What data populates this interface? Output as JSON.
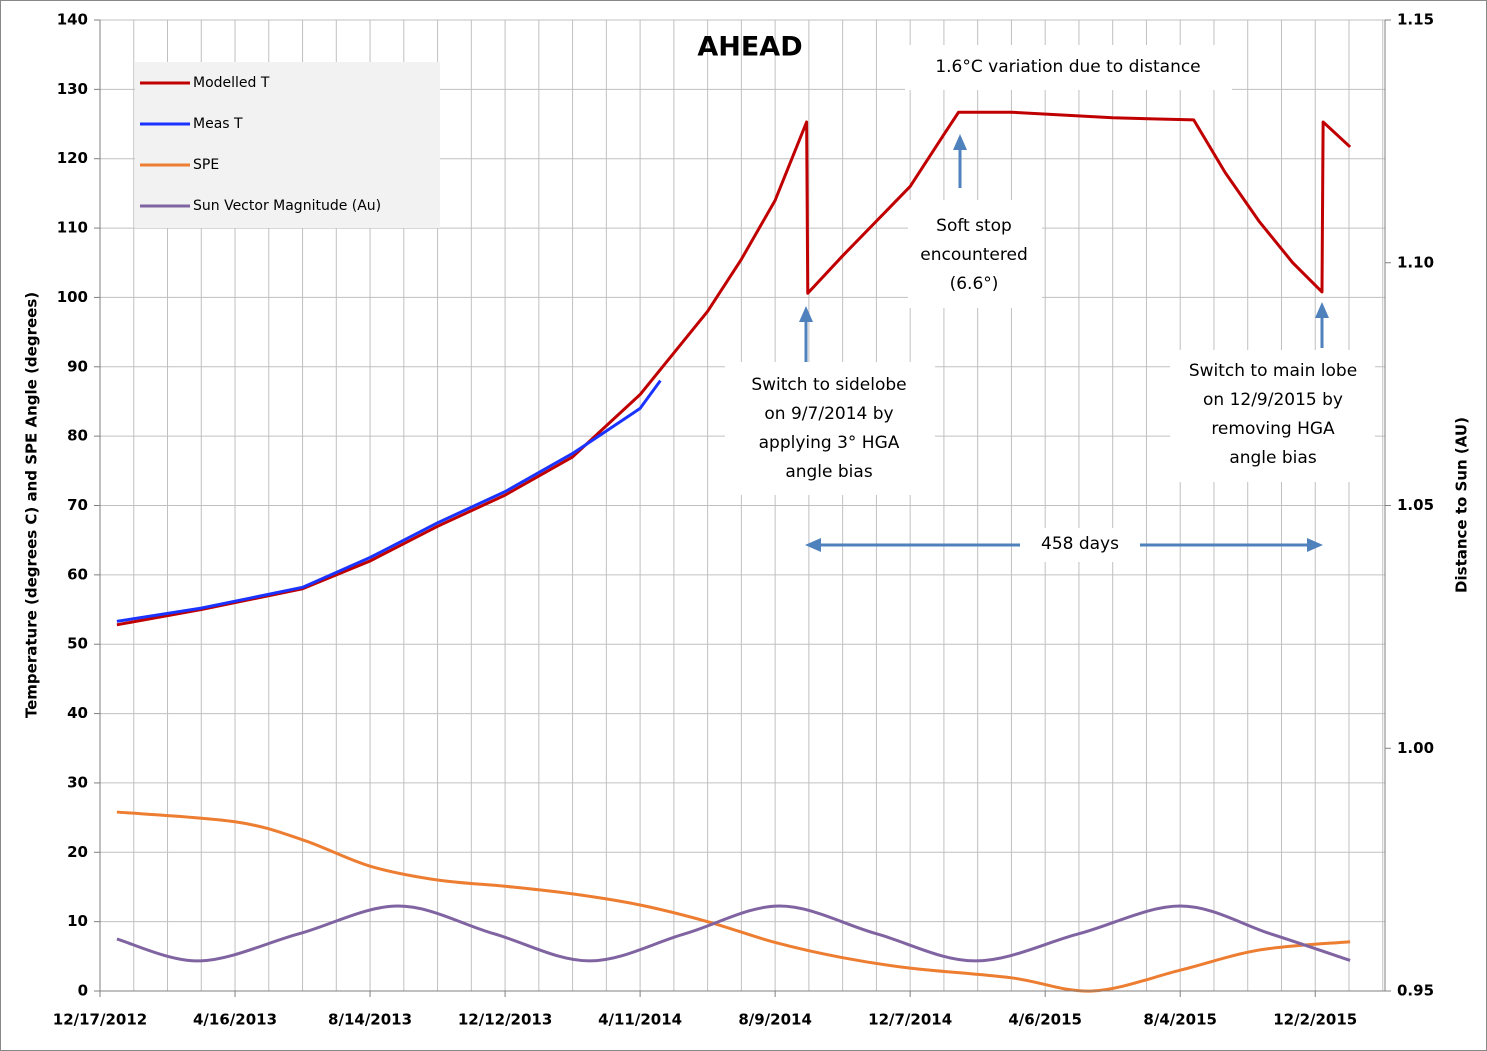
{
  "chart_data": {
    "type": "line",
    "title": "AHEAD",
    "y_label": "Temperature (degrees C) and SPE Angle (degrees)",
    "y2_label": "Distance to Sun (AU)",
    "xlim": [
      "2012-12-17",
      "2016-02-02"
    ],
    "xticks": [
      {
        "value": "2012-12-17",
        "label": "12/17/2012"
      },
      {
        "value": "2013-04-16",
        "label": "4/16/2013"
      },
      {
        "value": "2013-08-14",
        "label": "8/14/2013"
      },
      {
        "value": "2013-12-12",
        "label": "12/12/2013"
      },
      {
        "value": "2014-04-11",
        "label": "4/11/2014"
      },
      {
        "value": "2014-08-09",
        "label": "8/9/2014"
      },
      {
        "value": "2014-12-07",
        "label": "12/7/2014"
      },
      {
        "value": "2015-04-06",
        "label": "4/6/2015"
      },
      {
        "value": "2015-08-04",
        "label": "8/4/2015"
      },
      {
        "value": "2015-12-02",
        "label": "12/2/2015"
      }
    ],
    "xgrid": [
      "2012-12-17",
      "2013-01-16",
      "2013-02-15",
      "2013-03-17",
      "2013-04-16",
      "2013-05-16",
      "2013-06-15",
      "2013-07-15",
      "2013-08-14",
      "2013-09-13",
      "2013-10-13",
      "2013-11-12",
      "2013-12-12",
      "2014-01-11",
      "2014-02-10",
      "2014-03-12",
      "2014-04-11",
      "2014-05-11",
      "2014-06-10",
      "2014-07-10",
      "2014-08-09",
      "2014-09-08",
      "2014-10-08",
      "2014-11-07",
      "2014-12-07",
      "2015-01-06",
      "2015-02-05",
      "2015-03-07",
      "2015-04-06",
      "2015-05-06",
      "2015-06-05",
      "2015-07-05",
      "2015-08-04",
      "2015-09-03",
      "2015-10-03",
      "2015-11-02",
      "2015-12-02",
      "2016-01-01",
      "2016-01-31"
    ],
    "ylim": [
      0,
      140
    ],
    "yticks": [
      0,
      10,
      20,
      30,
      40,
      50,
      60,
      70,
      80,
      90,
      100,
      110,
      120,
      130,
      140
    ],
    "y2lim": [
      0.95,
      1.15
    ],
    "y2ticks": [
      0.95,
      {
        "value": 1.0,
        "label": "1.00"
      },
      1.05,
      {
        "value": 1.1,
        "label": "1.10"
      },
      1.15
    ],
    "grid": true,
    "legend": "upper left",
    "series": [
      {
        "name": "Modelled T",
        "color": "#c00000",
        "x": [
          "2013-01-01",
          "2013-03-17",
          "2013-06-15",
          "2013-08-14",
          "2013-10-13",
          "2013-12-12",
          "2014-02-10",
          "2014-04-11",
          "2014-05-11",
          "2014-06-10",
          "2014-07-10",
          "2014-08-09",
          "2014-09-06",
          "2014-09-07",
          "2014-10-08",
          "2014-11-07",
          "2014-12-07",
          "2015-01-06",
          "2015-01-19",
          "2015-03-07",
          "2015-06-05",
          "2015-08-16",
          "2015-09-13",
          "2015-10-13",
          "2015-11-12",
          "2015-12-08",
          "2015-12-09",
          "2016-01-02"
        ],
        "values": [
          52.8,
          55,
          58,
          62,
          67,
          71.5,
          77,
          86,
          92,
          98,
          105.5,
          114,
          125.3,
          100.6,
          106,
          111,
          116,
          123.5,
          126.7,
          126.7,
          125.9,
          125.6,
          118,
          111,
          105,
          100.8,
          125.3,
          121.7
        ]
      },
      {
        "name": "Meas T",
        "color": "#1a33ff",
        "x": [
          "2013-01-01",
          "2013-03-17",
          "2013-06-15",
          "2013-08-14",
          "2013-10-13",
          "2013-12-12",
          "2014-02-10",
          "2014-04-11",
          "2014-04-29"
        ],
        "values": [
          53.3,
          55.2,
          58.2,
          62.5,
          67.5,
          72,
          77.5,
          84,
          88
        ]
      },
      {
        "name": "SPE",
        "color": "#ed7d31",
        "x": [
          "2013-01-01",
          "2013-04-16",
          "2013-06-15",
          "2013-08-14",
          "2013-10-13",
          "2013-12-12",
          "2014-02-10",
          "2014-04-11",
          "2014-06-10",
          "2014-08-09",
          "2014-10-08",
          "2014-12-07",
          "2015-03-07",
          "2015-05-18",
          "2015-08-04",
          "2015-10-13",
          "2016-01-02"
        ],
        "values": [
          25.8,
          24.4,
          21.8,
          18,
          16,
          15.1,
          14,
          12.4,
          10,
          7,
          4.8,
          3.3,
          1.9,
          0,
          3,
          5.9,
          7.1
        ]
      },
      {
        "name": "Sun Vector Magnitude (Au)",
        "color": "#8064a2",
        "axis": "y2",
        "x": [
          "2013-01-01",
          "2013-03-16",
          "2013-06-12",
          "2013-09-08",
          "2013-12-02",
          "2014-02-25",
          "2014-05-21",
          "2014-08-13",
          "2014-11-07",
          "2015-02-03",
          "2015-05-06",
          "2015-08-04",
          "2015-10-23",
          "2016-01-02"
        ],
        "values": [
          0.9607,
          0.9562,
          0.9618,
          0.9675,
          0.9618,
          0.9562,
          0.9618,
          0.9675,
          0.9618,
          0.9562,
          0.9618,
          0.9675,
          0.9618,
          0.9563
        ]
      }
    ],
    "annotations": [
      {
        "text": [
          "1.6°C variation due to distance"
        ]
      },
      {
        "text": [
          "Soft stop",
          "encountered",
          "(6.6°)"
        ]
      },
      {
        "text": [
          "Switch to sidelobe",
          "on 9/7/2014 by",
          "applying 3° HGA",
          "angle bias"
        ]
      },
      {
        "text": [
          "Switch to main lobe",
          "on 12/9/2015 by",
          "removing HGA",
          "angle bias"
        ]
      },
      {
        "text": [
          "458 days"
        ]
      }
    ]
  }
}
